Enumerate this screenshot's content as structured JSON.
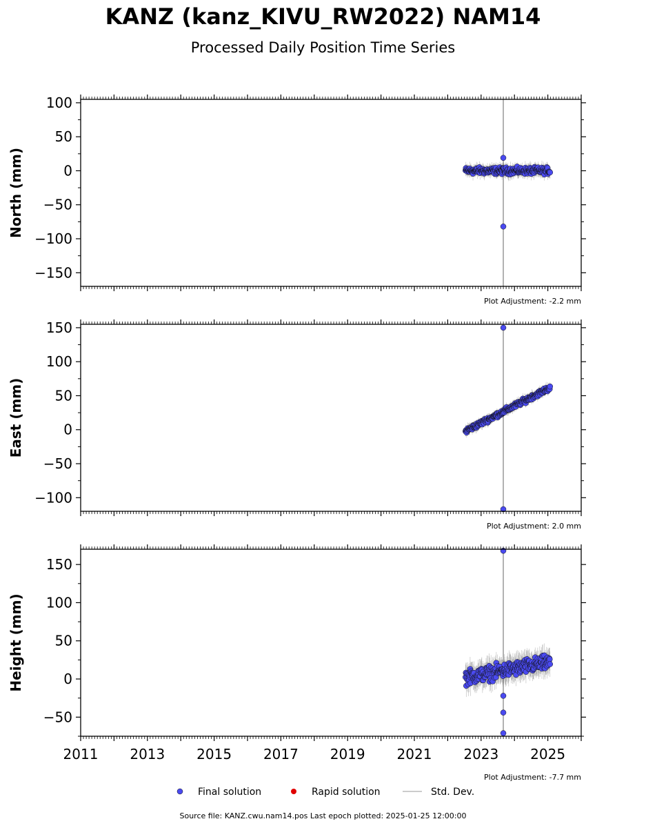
{
  "title": "KANZ (kanz_KIVU_RW2022) NAM14",
  "subtitle": "Processed Daily Position Time Series",
  "footer": "Source file: KANZ.cwu.nam14.pos  Last epoch plotted: 2025-01-25 12:00:00",
  "legend": {
    "final": "Final solution",
    "rapid": "Rapid solution",
    "std": "Std. Dev."
  },
  "colors": {
    "final": "#4a4af0",
    "rapid": "#e00000",
    "std": "#bbbbbb"
  },
  "chart_data": [
    {
      "type": "scatter",
      "ylabel": "North (mm)",
      "adjustment": "Plot Adjustment: -2.2 mm",
      "xlim": [
        "2011-01-01",
        "2026-01-01"
      ],
      "ylim": [
        -170,
        105
      ],
      "yticks": [
        100,
        50,
        0,
        -50,
        -100,
        -150
      ],
      "trend": {
        "start": [
          "2022-07-15",
          0
        ],
        "end": [
          "2025-01-25",
          0
        ],
        "scatter": 4
      },
      "outliers": [
        {
          "x": "2023-09-01",
          "y": -82
        },
        {
          "x": "2023-09-01",
          "y": 19
        }
      ],
      "spike": {
        "x": "2023-09-01",
        "y0": -170,
        "y1": 105
      }
    },
    {
      "type": "scatter",
      "ylabel": "East (mm)",
      "adjustment": "Plot Adjustment: 2.0 mm",
      "xlim": [
        "2011-01-01",
        "2026-01-01"
      ],
      "ylim": [
        -120,
        155
      ],
      "yticks": [
        150,
        100,
        50,
        0,
        -50,
        -100
      ],
      "trend": {
        "start": [
          "2022-07-15",
          -2
        ],
        "end": [
          "2025-01-25",
          62
        ],
        "scatter": 3
      },
      "outliers": [
        {
          "x": "2023-09-01",
          "y": 150
        },
        {
          "x": "2023-09-01",
          "y": -117
        }
      ],
      "spike": {
        "x": "2023-09-01",
        "y0": -118,
        "y1": 153
      }
    },
    {
      "type": "scatter",
      "ylabel": "Height (mm)",
      "adjustment": "Plot Adjustment: -7.7 mm",
      "xlim": [
        "2011-01-01",
        "2026-01-01"
      ],
      "xticks": [
        "2011",
        "2013",
        "2015",
        "2017",
        "2019",
        "2021",
        "2023",
        "2025"
      ],
      "ylim": [
        -75,
        170
      ],
      "yticks": [
        150,
        100,
        50,
        0,
        -50
      ],
      "trend": {
        "start": [
          "2022-07-15",
          2
        ],
        "end": [
          "2025-01-25",
          22
        ],
        "scatter": 8
      },
      "outliers": [
        {
          "x": "2023-09-01",
          "y": 168
        },
        {
          "x": "2023-09-01",
          "y": -22
        },
        {
          "x": "2023-09-01",
          "y": -44
        },
        {
          "x": "2023-09-01",
          "y": -71
        }
      ],
      "spike": {
        "x": "2023-09-01",
        "y0": -75,
        "y1": 170
      }
    }
  ]
}
